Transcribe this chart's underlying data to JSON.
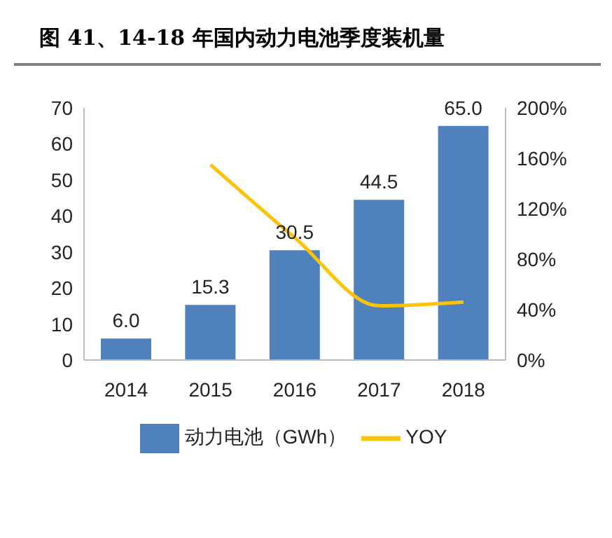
{
  "chart_data": {
    "type": "bar",
    "title": "图  41、14-18 年国内动力电池季度装机量",
    "categories": [
      "2014",
      "2015",
      "2016",
      "2017",
      "2018"
    ],
    "series": [
      {
        "name": "动力电池（GWh）",
        "color": "#4f81bd",
        "values": [
          6.0,
          15.3,
          30.5,
          44.5,
          65.0
        ],
        "value_labels": [
          "6.0",
          "15.3",
          "30.5",
          "44.5",
          "65.0"
        ]
      },
      {
        "name": "YOY",
        "type": "line",
        "axis": "y2",
        "color": "#fcc30a",
        "values": [
          null,
          155,
          97,
          43,
          46
        ]
      }
    ],
    "ylim": [
      0,
      70
    ],
    "yticks": [
      0,
      10,
      20,
      30,
      40,
      50,
      60,
      70
    ],
    "y2lim": [
      0,
      200
    ],
    "y2ticks": [
      {
        "value": 0,
        "label": "0%"
      },
      {
        "value": 40,
        "label": "40%"
      },
      {
        "value": 80,
        "label": "80%"
      },
      {
        "value": 120,
        "label": "120%"
      },
      {
        "value": 160,
        "label": "160%"
      },
      {
        "value": 200,
        "label": "200%"
      }
    ],
    "legend": "bottom",
    "grid": false,
    "marker": "none"
  }
}
